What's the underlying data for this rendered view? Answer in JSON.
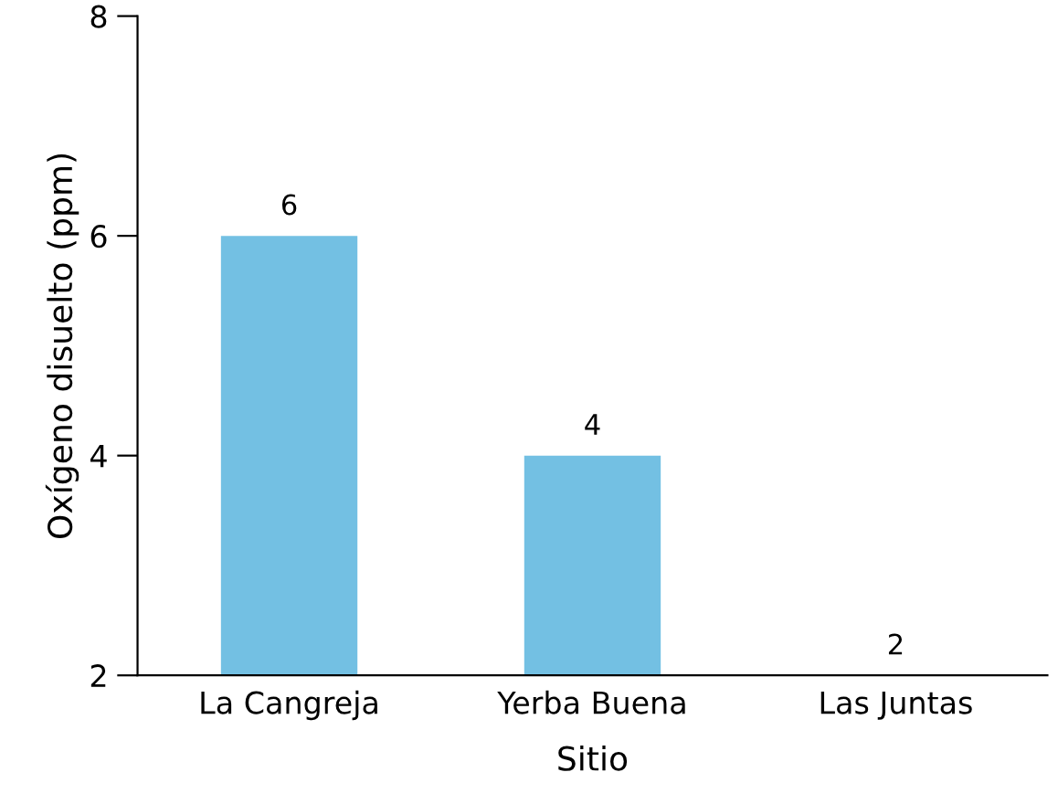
{
  "chart_data": {
    "type": "bar",
    "xlabel": "Sitio",
    "ylabel": "Oxígeno disuelto (ppm)",
    "categories": [
      "La Cangreja",
      "Yerba Buena",
      "Las Juntas"
    ],
    "values": [
      6,
      4,
      2
    ],
    "color": "#73c0e3",
    "ylim": [
      2,
      8
    ],
    "yticks": [
      2,
      4,
      6,
      8
    ],
    "data_labels": true,
    "grid": false,
    "legend": false
  }
}
